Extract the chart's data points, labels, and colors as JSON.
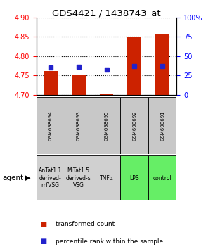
{
  "title": "GDS4421 / 1438743_at",
  "samples": [
    "GSM698694",
    "GSM698693",
    "GSM698695",
    "GSM698692",
    "GSM698691"
  ],
  "agents": [
    "AnTat1.1\nderived-\nmfVSG",
    "MiTat1.5\nderived-s\nVSG",
    "TNFα",
    "LPS",
    "control"
  ],
  "agent_colors": [
    "#d0d0d0",
    "#d0d0d0",
    "#d0d0d0",
    "#66ee66",
    "#66ee66"
  ],
  "red_values": [
    4.762,
    4.75,
    4.703,
    4.851,
    4.856
  ],
  "blue_values": [
    4.771,
    4.772,
    4.765,
    4.774,
    4.774
  ],
  "ylim_left": [
    4.7,
    4.9
  ],
  "ylim_right": [
    0,
    100
  ],
  "yticks_left": [
    4.7,
    4.75,
    4.8,
    4.85,
    4.9
  ],
  "yticks_right": [
    0,
    25,
    50,
    75,
    100
  ],
  "ytick_labels_right": [
    "0",
    "25",
    "50",
    "75",
    "100%"
  ],
  "bar_color": "#cc2200",
  "square_color": "#2222cc",
  "bar_width": 0.5,
  "baseline": 4.7,
  "sample_bg": "#c8c8c8"
}
